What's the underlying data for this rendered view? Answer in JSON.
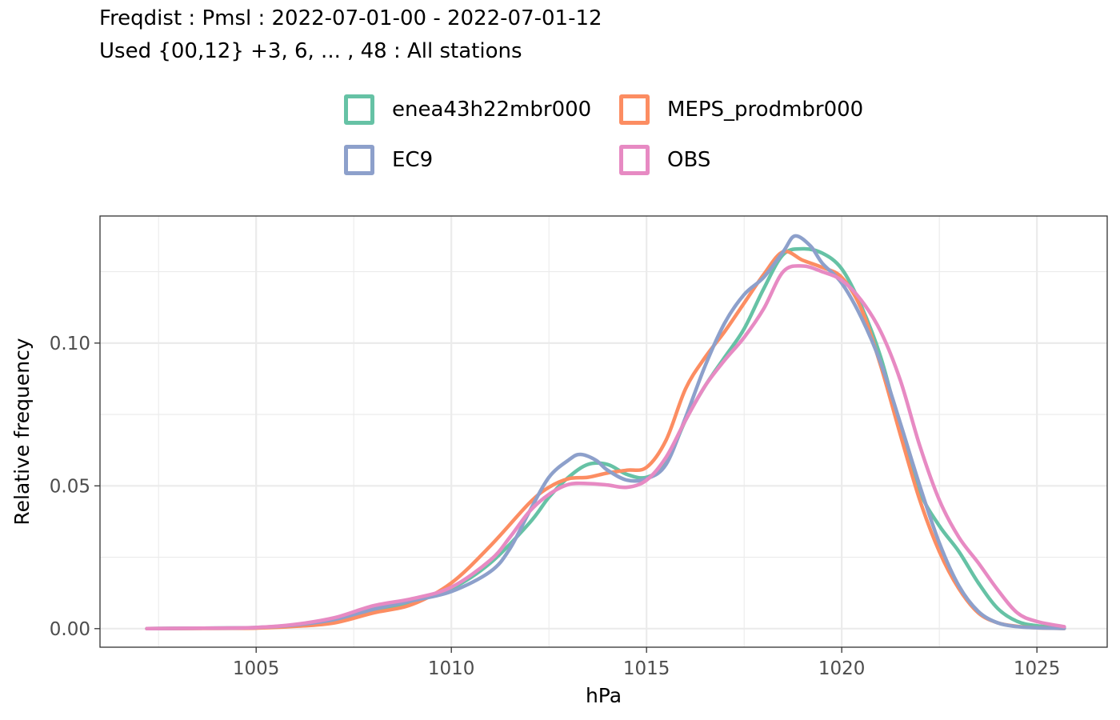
{
  "title": {
    "line1": "Freqdist : Pmsl : 2022-07-01-00 - 2022-07-01-12",
    "line2": "Used {00,12} +3, 6, ... , 48 : All stations"
  },
  "legend": {
    "items": [
      {
        "label": "enea43h22mbr000",
        "color": "#66c2a5"
      },
      {
        "label": "MEPS_prodmbr000",
        "color": "#fc8d62"
      },
      {
        "label": "EC9",
        "color": "#8da0cb"
      },
      {
        "label": "OBS",
        "color": "#e78ac3"
      }
    ]
  },
  "chart_data": {
    "type": "line",
    "xlabel": "hPa",
    "ylabel": "Relative frequency",
    "xlim": [
      1001,
      1026.8
    ],
    "ylim": [
      -0.0065,
      0.1445
    ],
    "x_ticks": [
      1005,
      1010,
      1015,
      1020,
      1025
    ],
    "x_tick_labels": [
      "1005",
      "1010",
      "1015",
      "1020",
      "1025"
    ],
    "y_ticks": [
      0.0,
      0.05,
      0.1
    ],
    "y_tick_labels": [
      "0.00",
      "0.05",
      "0.10"
    ],
    "grid": true,
    "legend_position": "top",
    "series": [
      {
        "name": "enea43h22mbr000",
        "color": "#66c2a5",
        "points": [
          [
            1002.2,
            0
          ],
          [
            1004,
            0.0002
          ],
          [
            1005,
            0.0003
          ],
          [
            1006,
            0.0012
          ],
          [
            1007,
            0.003
          ],
          [
            1008,
            0.0065
          ],
          [
            1009,
            0.0095
          ],
          [
            1010,
            0.014
          ],
          [
            1011,
            0.023
          ],
          [
            1012,
            0.037
          ],
          [
            1012.5,
            0.046
          ],
          [
            1013,
            0.053
          ],
          [
            1013.5,
            0.0575
          ],
          [
            1014,
            0.0575
          ],
          [
            1014.5,
            0.054
          ],
          [
            1015,
            0.053
          ],
          [
            1015.5,
            0.058
          ],
          [
            1016,
            0.073
          ],
          [
            1016.5,
            0.085
          ],
          [
            1017,
            0.095
          ],
          [
            1017.5,
            0.105
          ],
          [
            1018,
            0.119
          ],
          [
            1018.5,
            0.131
          ],
          [
            1019,
            0.133
          ],
          [
            1019.5,
            0.1315
          ],
          [
            1020,
            0.126
          ],
          [
            1020.5,
            0.113
          ],
          [
            1021,
            0.095
          ],
          [
            1021.5,
            0.07
          ],
          [
            1022,
            0.048
          ],
          [
            1022.5,
            0.036
          ],
          [
            1023,
            0.027
          ],
          [
            1023.5,
            0.016
          ],
          [
            1024,
            0.007
          ],
          [
            1024.5,
            0.0025
          ],
          [
            1025,
            0.001
          ],
          [
            1025.7,
            0.0003
          ]
        ]
      },
      {
        "name": "MEPS_prodmbr000",
        "color": "#fc8d62",
        "points": [
          [
            1002.2,
            0
          ],
          [
            1004,
            0.0001
          ],
          [
            1005,
            0.0002
          ],
          [
            1006,
            0.0008
          ],
          [
            1007,
            0.002
          ],
          [
            1008,
            0.0055
          ],
          [
            1009,
            0.0085
          ],
          [
            1010,
            0.016
          ],
          [
            1011,
            0.029
          ],
          [
            1012,
            0.044
          ],
          [
            1012.5,
            0.0495
          ],
          [
            1013,
            0.0525
          ],
          [
            1013.5,
            0.053
          ],
          [
            1014,
            0.0545
          ],
          [
            1014.5,
            0.0555
          ],
          [
            1015,
            0.0565
          ],
          [
            1015.5,
            0.066
          ],
          [
            1016,
            0.084
          ],
          [
            1016.5,
            0.095
          ],
          [
            1017,
            0.104
          ],
          [
            1017.5,
            0.114
          ],
          [
            1018,
            0.124
          ],
          [
            1018.5,
            0.132
          ],
          [
            1019,
            0.129
          ],
          [
            1019.5,
            0.1265
          ],
          [
            1020,
            0.123
          ],
          [
            1020.5,
            0.112
          ],
          [
            1021,
            0.092
          ],
          [
            1021.5,
            0.068
          ],
          [
            1022,
            0.045
          ],
          [
            1022.5,
            0.027
          ],
          [
            1023,
            0.014
          ],
          [
            1023.5,
            0.0055
          ],
          [
            1024,
            0.002
          ],
          [
            1024.5,
            0.0008
          ],
          [
            1025,
            0.0003
          ],
          [
            1025.7,
            0.0001
          ]
        ]
      },
      {
        "name": "EC9",
        "color": "#8da0cb",
        "points": [
          [
            1002.2,
            0
          ],
          [
            1004,
            0.0002
          ],
          [
            1005,
            0.0004
          ],
          [
            1006,
            0.0013
          ],
          [
            1007,
            0.0032
          ],
          [
            1008,
            0.0068
          ],
          [
            1009,
            0.0098
          ],
          [
            1010,
            0.013
          ],
          [
            1011,
            0.02
          ],
          [
            1011.5,
            0.028
          ],
          [
            1012,
            0.041
          ],
          [
            1012.5,
            0.053
          ],
          [
            1013,
            0.059
          ],
          [
            1013.3,
            0.061
          ],
          [
            1013.7,
            0.059
          ],
          [
            1014,
            0.0555
          ],
          [
            1014.5,
            0.052
          ],
          [
            1015,
            0.0525
          ],
          [
            1015.5,
            0.0575
          ],
          [
            1016,
            0.074
          ],
          [
            1016.5,
            0.092
          ],
          [
            1017,
            0.107
          ],
          [
            1017.5,
            0.117
          ],
          [
            1018,
            0.123
          ],
          [
            1018.5,
            0.132
          ],
          [
            1018.8,
            0.1375
          ],
          [
            1019.2,
            0.134
          ],
          [
            1019.5,
            0.128
          ],
          [
            1020,
            0.121
          ],
          [
            1020.5,
            0.109
          ],
          [
            1021,
            0.093
          ],
          [
            1021.5,
            0.072
          ],
          [
            1022,
            0.05
          ],
          [
            1022.5,
            0.03
          ],
          [
            1023,
            0.015
          ],
          [
            1023.5,
            0.006
          ],
          [
            1024,
            0.002
          ],
          [
            1024.5,
            0.0007
          ],
          [
            1025,
            0.0003
          ],
          [
            1025.7,
            0.0001
          ]
        ]
      },
      {
        "name": "OBS",
        "color": "#e78ac3",
        "points": [
          [
            1002.2,
            0
          ],
          [
            1004,
            0.0002
          ],
          [
            1005,
            0.0004
          ],
          [
            1006,
            0.0015
          ],
          [
            1007,
            0.0038
          ],
          [
            1008,
            0.008
          ],
          [
            1009,
            0.0105
          ],
          [
            1010,
            0.0145
          ],
          [
            1011,
            0.024
          ],
          [
            1011.5,
            0.032
          ],
          [
            1012,
            0.041
          ],
          [
            1012.5,
            0.047
          ],
          [
            1013,
            0.0505
          ],
          [
            1013.5,
            0.0508
          ],
          [
            1014,
            0.0503
          ],
          [
            1014.5,
            0.0495
          ],
          [
            1015,
            0.052
          ],
          [
            1015.5,
            0.06
          ],
          [
            1016,
            0.073
          ],
          [
            1016.5,
            0.085
          ],
          [
            1017,
            0.094
          ],
          [
            1017.5,
            0.102
          ],
          [
            1018,
            0.112
          ],
          [
            1018.5,
            0.125
          ],
          [
            1019,
            0.127
          ],
          [
            1019.5,
            0.125
          ],
          [
            1020,
            0.122
          ],
          [
            1020.5,
            0.115
          ],
          [
            1021,
            0.104
          ],
          [
            1021.5,
            0.087
          ],
          [
            1022,
            0.064
          ],
          [
            1022.5,
            0.045
          ],
          [
            1023,
            0.032
          ],
          [
            1023.5,
            0.023
          ],
          [
            1024,
            0.0135
          ],
          [
            1024.5,
            0.0055
          ],
          [
            1025,
            0.0025
          ],
          [
            1025.7,
            0.0007
          ]
        ]
      }
    ]
  }
}
